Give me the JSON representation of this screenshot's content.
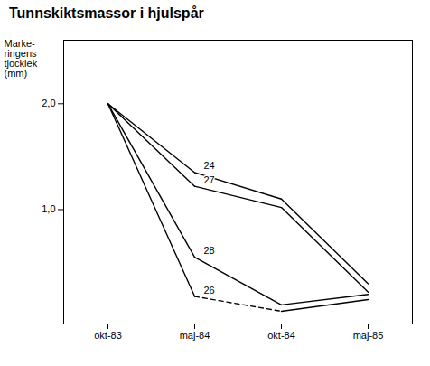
{
  "chart_data": {
    "type": "line",
    "title": "Tunnskiktsmassor i hjulspår",
    "y_label": "Marke-\nringens\ntjocklek\n(mm)",
    "categories": [
      "okt-83",
      "maj-84",
      "okt-84",
      "maj-85"
    ],
    "series": [
      {
        "name": "24",
        "color": "#000000",
        "line_style": "solid",
        "values": [
          2.0,
          1.35,
          1.1,
          0.3
        ]
      },
      {
        "name": "27",
        "color": "#000000",
        "line_style": "solid",
        "values": [
          2.0,
          1.22,
          1.02,
          0.22
        ]
      },
      {
        "name": "28",
        "color": "#000000",
        "line_style": "solid",
        "values": [
          2.0,
          0.55,
          0.1,
          0.2
        ]
      },
      {
        "name": "26",
        "color": "#000000",
        "line_style": "solid_dashed",
        "values": [
          2.0,
          0.18,
          0.04,
          0.15
        ]
      }
    ],
    "ylim": [
      -0.08,
      2.6
    ],
    "yticks": [
      {
        "value": 1.0,
        "label": "1,0"
      },
      {
        "value": 2.0,
        "label": "2,0"
      }
    ],
    "grid": false
  }
}
